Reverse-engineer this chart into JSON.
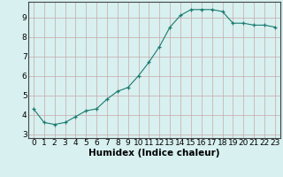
{
  "x": [
    0,
    1,
    2,
    3,
    4,
    5,
    6,
    7,
    8,
    9,
    10,
    11,
    12,
    13,
    14,
    15,
    16,
    17,
    18,
    19,
    20,
    21,
    22,
    23
  ],
  "y": [
    4.3,
    3.6,
    3.5,
    3.6,
    3.9,
    4.2,
    4.3,
    4.8,
    5.2,
    5.4,
    6.0,
    6.7,
    7.5,
    8.5,
    9.1,
    9.4,
    9.4,
    9.4,
    9.3,
    8.7,
    8.7,
    8.6,
    8.6,
    8.5
  ],
  "xlabel": "Humidex (Indice chaleur)",
  "xlim": [
    -0.5,
    23.5
  ],
  "ylim": [
    2.8,
    9.8
  ],
  "yticks": [
    3,
    4,
    5,
    6,
    7,
    8,
    9
  ],
  "xticks": [
    0,
    1,
    2,
    3,
    4,
    5,
    6,
    7,
    8,
    9,
    10,
    11,
    12,
    13,
    14,
    15,
    16,
    17,
    18,
    19,
    20,
    21,
    22,
    23
  ],
  "line_color": "#1a7a6e",
  "marker": "+",
  "bg_color": "#d8f0f0",
  "grid_color": "#c8a8a8",
  "xlabel_fontsize": 7.5,
  "tick_fontsize": 6.5
}
